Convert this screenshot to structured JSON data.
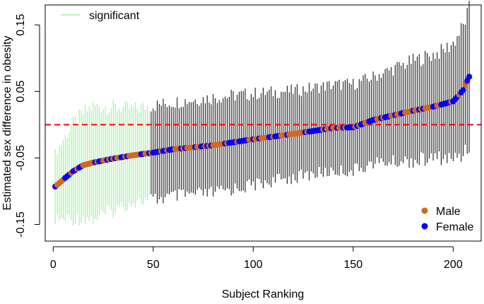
{
  "chart_data": {
    "type": "scatter",
    "xlabel": "Subject Ranking",
    "ylabel": "Estimated sex difference in obesity",
    "xlim": [
      -4,
      214
    ],
    "ylim": [
      -0.175,
      0.18
    ],
    "x_ticks": [
      0,
      50,
      100,
      150,
      200
    ],
    "x_tick_labels": [
      "0",
      "50",
      "100",
      "150",
      "200"
    ],
    "y_ticks": [
      -0.15,
      -0.05,
      0.05,
      0.15
    ],
    "y_tick_labels": [
      "-0.15",
      "-0.05",
      "0.05",
      "0.15"
    ],
    "reference_line": {
      "y": 0.0,
      "style": "dashed",
      "color": "#ff0000"
    },
    "n_points": 208,
    "significant_count": 48,
    "legend_top": {
      "position": "top-left",
      "entries": [
        {
          "label": "significant",
          "color": "#90ee90",
          "symbol": "line"
        }
      ]
    },
    "legend_bottom": {
      "position": "bottom-right",
      "entries": [
        {
          "label": "Male",
          "color": "#d2691e",
          "symbol": "point"
        },
        {
          "label": "Female",
          "color": "#0000ff",
          "symbol": "point"
        }
      ]
    },
    "colors": {
      "male": "#d2691e",
      "female": "#0000ff",
      "significant": "#90ee90",
      "interval": "#000000",
      "reference": "#ff0000"
    },
    "estimate_anchors": [
      [
        1,
        -0.093
      ],
      [
        3,
        -0.088
      ],
      [
        6,
        -0.08
      ],
      [
        10,
        -0.07
      ],
      [
        15,
        -0.061
      ],
      [
        20,
        -0.057
      ],
      [
        30,
        -0.051
      ],
      [
        40,
        -0.046
      ],
      [
        50,
        -0.042
      ],
      [
        60,
        -0.037
      ],
      [
        80,
        -0.031
      ],
      [
        100,
        -0.022
      ],
      [
        120,
        -0.014
      ],
      [
        140,
        -0.005
      ],
      [
        150,
        -0.004
      ],
      [
        160,
        0.007
      ],
      [
        170,
        0.014
      ],
      [
        180,
        0.021
      ],
      [
        190,
        0.027
      ],
      [
        200,
        0.035
      ],
      [
        203,
        0.045
      ],
      [
        205,
        0.052
      ],
      [
        206,
        0.06
      ],
      [
        207,
        0.066
      ],
      [
        208,
        0.072
      ]
    ],
    "interval_half_width_anchors": [
      [
        1,
        0.05
      ],
      [
        10,
        0.072
      ],
      [
        20,
        0.085
      ],
      [
        40,
        0.07
      ],
      [
        80,
        0.072
      ],
      [
        120,
        0.065
      ],
      [
        160,
        0.065
      ],
      [
        180,
        0.075
      ],
      [
        195,
        0.08
      ],
      [
        208,
        0.1
      ]
    ]
  }
}
